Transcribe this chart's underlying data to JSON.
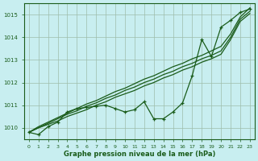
{
  "x": [
    0,
    1,
    2,
    3,
    4,
    5,
    6,
    7,
    8,
    9,
    10,
    11,
    12,
    13,
    14,
    15,
    16,
    17,
    18,
    19,
    20,
    21,
    22,
    23
  ],
  "line_straight1": [
    1009.8,
    1010.0,
    1010.15,
    1010.3,
    1010.5,
    1010.65,
    1010.8,
    1011.0,
    1011.15,
    1011.35,
    1011.5,
    1011.65,
    1011.85,
    1012.0,
    1012.2,
    1012.35,
    1012.55,
    1012.7,
    1012.9,
    1013.05,
    1013.25,
    1013.9,
    1014.7,
    1015.05
  ],
  "line_straight2": [
    1009.8,
    1010.0,
    1010.2,
    1010.4,
    1010.6,
    1010.75,
    1010.95,
    1011.1,
    1011.3,
    1011.45,
    1011.65,
    1011.8,
    1012.0,
    1012.15,
    1012.35,
    1012.5,
    1012.7,
    1012.85,
    1013.05,
    1013.2,
    1013.4,
    1014.0,
    1014.8,
    1015.15
  ],
  "line_straight3": [
    1009.8,
    1010.05,
    1010.25,
    1010.45,
    1010.65,
    1010.85,
    1011.05,
    1011.2,
    1011.4,
    1011.6,
    1011.75,
    1011.95,
    1012.15,
    1012.3,
    1012.5,
    1012.7,
    1012.85,
    1013.05,
    1013.2,
    1013.4,
    1013.6,
    1014.15,
    1014.9,
    1015.3
  ],
  "line_jagged": [
    1009.8,
    1009.7,
    1010.05,
    1010.25,
    1010.7,
    1010.85,
    1010.9,
    1010.95,
    1011.0,
    1010.85,
    1010.7,
    1010.8,
    1011.15,
    1010.4,
    1010.4,
    1010.7,
    1011.1,
    1012.3,
    1013.9,
    1013.15,
    1014.45,
    1014.75,
    1015.1,
    1015.25
  ],
  "bg_color": "#c8eef0",
  "grid_color": "#9dbdaa",
  "line_color": "#1a5c1a",
  "xlabel": "Graphe pression niveau de la mer (hPa)",
  "ylim": [
    1009.5,
    1015.5
  ],
  "xlim": [
    -0.5,
    23.5
  ],
  "yticks": [
    1010,
    1011,
    1012,
    1013,
    1014,
    1015
  ],
  "xticks": [
    0,
    1,
    2,
    3,
    4,
    5,
    6,
    7,
    8,
    9,
    10,
    11,
    12,
    13,
    14,
    15,
    16,
    17,
    18,
    19,
    20,
    21,
    22,
    23
  ],
  "marker": "+",
  "marker_size": 3.5,
  "line_width": 0.9
}
